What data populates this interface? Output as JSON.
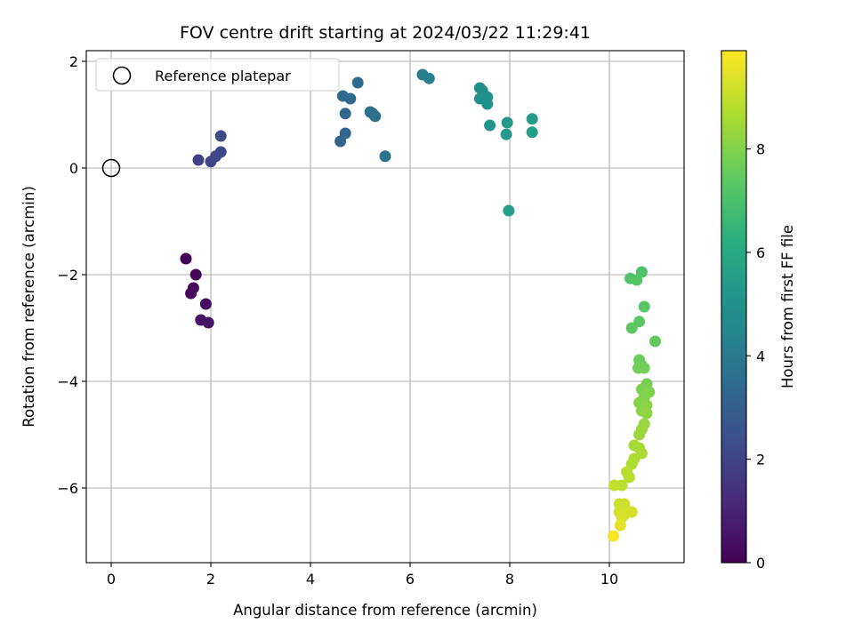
{
  "chart_data": {
    "type": "scatter",
    "title": "FOV centre drift starting at 2024/03/22 11:29:41",
    "xlabel": "Angular distance from reference (arcmin)",
    "ylabel": "Rotation from reference (arcmin)",
    "xlim": [
      -0.5,
      11.5
    ],
    "ylim": [
      -7.4,
      2.2
    ],
    "xticks": [
      0,
      2,
      4,
      6,
      8,
      10
    ],
    "yticks": [
      -6,
      -4,
      -2,
      0,
      2
    ],
    "xtick_labels": [
      "0",
      "2",
      "4",
      "6",
      "8",
      "10"
    ],
    "ytick_labels": [
      "−6",
      "−4",
      "−2",
      "0",
      "2"
    ],
    "grid": true,
    "legend": {
      "position": "top-left",
      "entries": [
        {
          "label": "Reference platepar",
          "marker": "open-circle"
        }
      ]
    },
    "reference_point": {
      "x": 0,
      "y": 0
    },
    "colormap": "viridis",
    "colorbar": {
      "label": "Hours from first FF file",
      "min": 0,
      "max": 9.9,
      "ticks": [
        0,
        2,
        4,
        6,
        8
      ],
      "tick_labels": [
        "0",
        "2",
        "4",
        "6",
        "8"
      ]
    },
    "points": [
      {
        "x": 1.5,
        "y": -1.7,
        "t": 0.05
      },
      {
        "x": 1.7,
        "y": -2.0,
        "t": 0.15
      },
      {
        "x": 1.65,
        "y": -2.25,
        "t": 0.25
      },
      {
        "x": 1.6,
        "y": -2.35,
        "t": 0.3
      },
      {
        "x": 1.9,
        "y": -2.55,
        "t": 0.35
      },
      {
        "x": 1.8,
        "y": -2.85,
        "t": 0.45
      },
      {
        "x": 1.95,
        "y": -2.9,
        "t": 0.5
      },
      {
        "x": 1.75,
        "y": 0.15,
        "t": 1.9
      },
      {
        "x": 2.0,
        "y": 0.12,
        "t": 2.0
      },
      {
        "x": 2.1,
        "y": 0.22,
        "t": 2.1
      },
      {
        "x": 2.2,
        "y": 0.3,
        "t": 2.15
      },
      {
        "x": 2.2,
        "y": 0.6,
        "t": 2.2
      },
      {
        "x": 4.6,
        "y": 0.5,
        "t": 3.2
      },
      {
        "x": 4.7,
        "y": 0.65,
        "t": 3.25
      },
      {
        "x": 4.7,
        "y": 1.02,
        "t": 3.3
      },
      {
        "x": 4.65,
        "y": 1.35,
        "t": 3.35
      },
      {
        "x": 4.8,
        "y": 1.3,
        "t": 3.4
      },
      {
        "x": 4.95,
        "y": 1.6,
        "t": 3.45
      },
      {
        "x": 5.2,
        "y": 1.05,
        "t": 3.55
      },
      {
        "x": 5.25,
        "y": 1.02,
        "t": 3.6
      },
      {
        "x": 5.3,
        "y": 0.97,
        "t": 3.65
      },
      {
        "x": 5.5,
        "y": 0.22,
        "t": 3.8
      },
      {
        "x": 6.25,
        "y": 1.75,
        "t": 4.2
      },
      {
        "x": 6.38,
        "y": 1.68,
        "t": 4.3
      },
      {
        "x": 7.4,
        "y": 1.5,
        "t": 4.8
      },
      {
        "x": 7.45,
        "y": 1.45,
        "t": 4.85
      },
      {
        "x": 7.4,
        "y": 1.3,
        "t": 4.9
      },
      {
        "x": 7.55,
        "y": 1.33,
        "t": 4.95
      },
      {
        "x": 7.55,
        "y": 1.2,
        "t": 5.0
      },
      {
        "x": 7.6,
        "y": 0.8,
        "t": 5.1
      },
      {
        "x": 7.95,
        "y": 0.85,
        "t": 5.2
      },
      {
        "x": 7.93,
        "y": 0.63,
        "t": 5.3
      },
      {
        "x": 8.45,
        "y": 0.92,
        "t": 5.4
      },
      {
        "x": 8.45,
        "y": 0.67,
        "t": 5.5
      },
      {
        "x": 7.98,
        "y": -0.8,
        "t": 5.6
      },
      {
        "x": 10.65,
        "y": -1.95,
        "t": 7.1
      },
      {
        "x": 10.42,
        "y": -2.07,
        "t": 7.15
      },
      {
        "x": 10.55,
        "y": -2.1,
        "t": 7.2
      },
      {
        "x": 10.7,
        "y": -2.6,
        "t": 7.3
      },
      {
        "x": 10.6,
        "y": -2.88,
        "t": 7.35
      },
      {
        "x": 10.45,
        "y": -3.0,
        "t": 7.4
      },
      {
        "x": 10.92,
        "y": -3.25,
        "t": 7.5
      },
      {
        "x": 10.6,
        "y": -3.6,
        "t": 7.6
      },
      {
        "x": 10.65,
        "y": -3.7,
        "t": 7.65
      },
      {
        "x": 10.58,
        "y": -3.75,
        "t": 7.7
      },
      {
        "x": 10.7,
        "y": -3.75,
        "t": 7.75
      },
      {
        "x": 10.75,
        "y": -4.05,
        "t": 7.85
      },
      {
        "x": 10.65,
        "y": -4.15,
        "t": 7.9
      },
      {
        "x": 10.8,
        "y": -4.2,
        "t": 7.95
      },
      {
        "x": 10.7,
        "y": -4.3,
        "t": 8.0
      },
      {
        "x": 10.6,
        "y": -4.4,
        "t": 8.05
      },
      {
        "x": 10.75,
        "y": -4.45,
        "t": 8.1
      },
      {
        "x": 10.65,
        "y": -4.55,
        "t": 8.15
      },
      {
        "x": 10.75,
        "y": -4.6,
        "t": 8.2
      },
      {
        "x": 10.7,
        "y": -4.8,
        "t": 8.3
      },
      {
        "x": 10.65,
        "y": -4.9,
        "t": 8.35
      },
      {
        "x": 10.6,
        "y": -5.0,
        "t": 8.4
      },
      {
        "x": 10.5,
        "y": -5.2,
        "t": 8.5
      },
      {
        "x": 10.6,
        "y": -5.25,
        "t": 8.55
      },
      {
        "x": 10.65,
        "y": -5.35,
        "t": 8.6
      },
      {
        "x": 10.5,
        "y": -5.45,
        "t": 8.65
      },
      {
        "x": 10.45,
        "y": -5.55,
        "t": 8.7
      },
      {
        "x": 10.35,
        "y": -5.7,
        "t": 8.8
      },
      {
        "x": 10.4,
        "y": -5.8,
        "t": 8.85
      },
      {
        "x": 10.25,
        "y": -5.95,
        "t": 8.9
      },
      {
        "x": 10.1,
        "y": -5.95,
        "t": 9.0
      },
      {
        "x": 10.2,
        "y": -6.3,
        "t": 9.1
      },
      {
        "x": 10.3,
        "y": -6.3,
        "t": 9.15
      },
      {
        "x": 10.2,
        "y": -6.45,
        "t": 9.2
      },
      {
        "x": 10.45,
        "y": -6.45,
        "t": 9.25
      },
      {
        "x": 10.3,
        "y": -6.5,
        "t": 9.3
      },
      {
        "x": 10.25,
        "y": -6.55,
        "t": 9.35
      },
      {
        "x": 10.22,
        "y": -6.7,
        "t": 9.5
      },
      {
        "x": 10.08,
        "y": -6.9,
        "t": 9.8
      }
    ]
  }
}
